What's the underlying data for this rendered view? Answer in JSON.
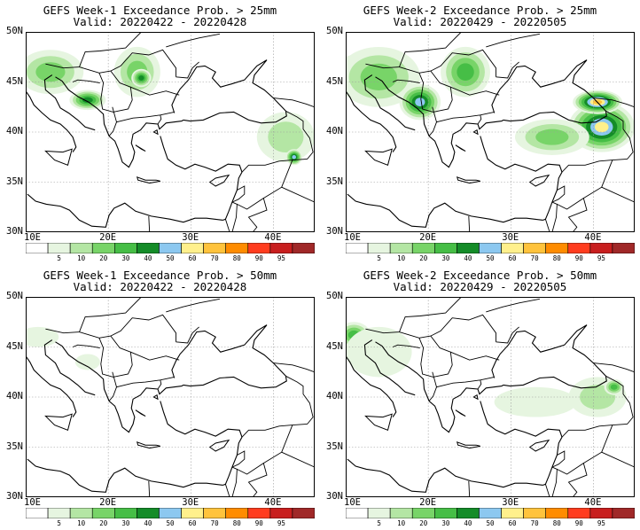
{
  "panels": [
    {
      "id": "w1_25",
      "title_line1": "GEFS Week-1 Exceedance Prob. > 25mm",
      "title_line2": "Valid: 20220422 - 20220428",
      "blobs": [
        {
          "lon": 11.0,
          "lat": 46.3,
          "rx": 1.8,
          "ry": 1.4,
          "level": 8
        },
        {
          "lon": 13.0,
          "lat": 46.0,
          "rx": 4.0,
          "ry": 2.2,
          "level": 3
        },
        {
          "lon": 17.5,
          "lat": 43.2,
          "rx": 2.2,
          "ry": 1.0,
          "level": 5
        },
        {
          "lon": 23.5,
          "lat": 46.0,
          "rx": 2.8,
          "ry": 2.5,
          "level": 3
        },
        {
          "lon": 24.0,
          "lat": 45.4,
          "rx": 1.2,
          "ry": 0.9,
          "level": 5
        },
        {
          "lon": 41.5,
          "lat": 39.5,
          "rx": 3.5,
          "ry": 2.5,
          "level": 2
        },
        {
          "lon": 42.5,
          "lat": 37.5,
          "rx": 1.0,
          "ry": 0.8,
          "level": 6
        }
      ]
    },
    {
      "id": "w2_25",
      "title_line1": "GEFS Week-2 Exceedance Prob. > 25mm",
      "title_line2": "Valid: 20220429 - 20220505",
      "blobs": [
        {
          "lon": 11.0,
          "lat": 46.3,
          "rx": 2.0,
          "ry": 1.4,
          "level": 8
        },
        {
          "lon": 14.0,
          "lat": 45.5,
          "rx": 5.0,
          "ry": 3.0,
          "level": 3
        },
        {
          "lon": 19.0,
          "lat": 43.0,
          "rx": 2.5,
          "ry": 1.8,
          "level": 6
        },
        {
          "lon": 24.5,
          "lat": 46.0,
          "rx": 3.0,
          "ry": 2.5,
          "level": 4
        },
        {
          "lon": 41.0,
          "lat": 40.5,
          "rx": 4.0,
          "ry": 2.5,
          "level": 7
        },
        {
          "lon": 35.0,
          "lat": 39.5,
          "rx": 4.5,
          "ry": 1.8,
          "level": 3
        },
        {
          "lon": 40.5,
          "lat": 43.0,
          "rx": 3.0,
          "ry": 1.2,
          "level": 8
        }
      ]
    },
    {
      "id": "w1_50",
      "title_line1": "GEFS Week-1 Exceedance Prob. > 50mm",
      "title_line2": "Valid: 20220422 - 20220428",
      "blobs": [
        {
          "lon": 11.5,
          "lat": 46.0,
          "rx": 2.5,
          "ry": 1.0,
          "level": 1
        },
        {
          "lon": 17.5,
          "lat": 43.5,
          "rx": 1.5,
          "ry": 0.8,
          "level": 1
        }
      ]
    },
    {
      "id": "w2_50",
      "title_line1": "GEFS Week-2 Exceedance Prob. > 50mm",
      "title_line2": "Valid: 20220429 - 20220505",
      "blobs": [
        {
          "lon": 11.0,
          "lat": 46.2,
          "rx": 2.0,
          "ry": 1.3,
          "level": 4
        },
        {
          "lon": 14.0,
          "lat": 44.5,
          "rx": 4.0,
          "ry": 2.5,
          "level": 1
        },
        {
          "lon": 40.5,
          "lat": 40.0,
          "rx": 3.5,
          "ry": 2.0,
          "level": 2
        },
        {
          "lon": 42.5,
          "lat": 41.0,
          "rx": 1.2,
          "ry": 0.8,
          "level": 4
        },
        {
          "lon": 33.0,
          "lat": 39.5,
          "rx": 5.0,
          "ry": 1.5,
          "level": 1
        }
      ]
    }
  ],
  "map": {
    "lon_range": [
      10,
      45
    ],
    "lat_range": [
      30,
      50
    ],
    "lon_ticks": [
      10,
      20,
      30,
      40
    ],
    "lat_ticks": [
      30,
      35,
      40,
      45,
      50
    ],
    "lon_tick_labels": [
      "10E",
      "20E",
      "30E",
      "40E"
    ],
    "lat_tick_labels": [
      "30N",
      "35N",
      "40N",
      "45N",
      "50N"
    ]
  },
  "colorbar": {
    "colors": [
      "#ffffff",
      "#e6f5e0",
      "#b4e6a4",
      "#78d468",
      "#46be46",
      "#148c28",
      "#8cc8f0",
      "#fff08c",
      "#ffc33c",
      "#ff8c00",
      "#ff3c1e",
      "#c81e1e",
      "#a02828"
    ],
    "labels": [
      "5",
      "10",
      "20",
      "30",
      "40",
      "50",
      "60",
      "70",
      "80",
      "90",
      "95"
    ]
  }
}
